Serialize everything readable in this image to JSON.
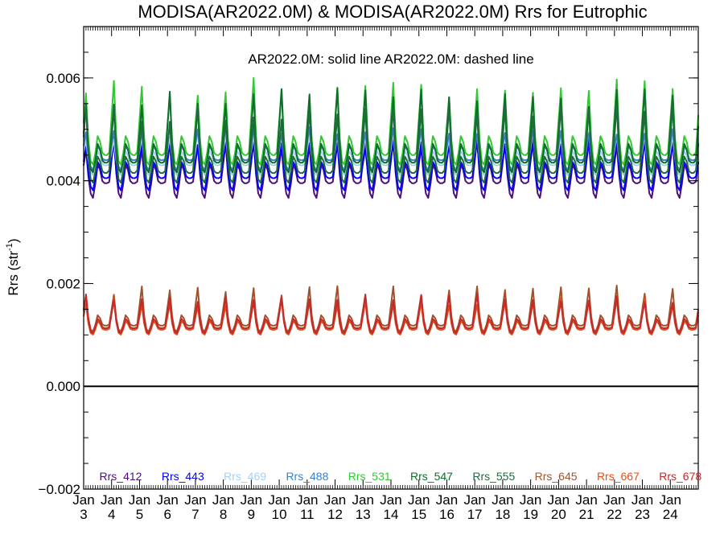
{
  "chart_data": {
    "type": "line",
    "title": "MODISA(AR2022.0M) & MODISA(AR2022.0M)  Rrs for Eutrophic",
    "subtitle": "AR2022.0M: solid line   AR2022.0M: dashed line",
    "ylabel": "Rrs (str",
    "ylabel_sup": "-1",
    "ylabel_close": ")",
    "xlabel": "",
    "ylim": [
      -0.002,
      0.007
    ],
    "xlim": [
      2003,
      2025
    ],
    "yticks": [
      "−0.002",
      "0.000",
      "0.002",
      "0.004",
      "0.006"
    ],
    "ytick_values": [
      -0.002,
      0.0,
      0.002,
      0.004,
      0.006
    ],
    "xticks": [
      {
        "month": "Jan",
        "year": "3",
        "x": 2003
      },
      {
        "month": "Jan",
        "year": "4",
        "x": 2004
      },
      {
        "month": "Jan",
        "year": "5",
        "x": 2005
      },
      {
        "month": "Jan",
        "year": "6",
        "x": 2006
      },
      {
        "month": "Jan",
        "year": "7",
        "x": 2007
      },
      {
        "month": "Jan",
        "year": "8",
        "x": 2008
      },
      {
        "month": "Jan",
        "year": "9",
        "x": 2009
      },
      {
        "month": "Jan",
        "year": "10",
        "x": 2010
      },
      {
        "month": "Jan",
        "year": "11",
        "x": 2011
      },
      {
        "month": "Jan",
        "year": "12",
        "x": 2012
      },
      {
        "month": "Jan",
        "year": "13",
        "x": 2013
      },
      {
        "month": "Jan",
        "year": "14",
        "x": 2014
      },
      {
        "month": "Jan",
        "year": "15",
        "x": 2015
      },
      {
        "month": "Jan",
        "year": "16",
        "x": 2016
      },
      {
        "month": "Jan",
        "year": "17",
        "x": 2017
      },
      {
        "month": "Jan",
        "year": "18",
        "x": 2018
      },
      {
        "month": "Jan",
        "year": "19",
        "x": 2019
      },
      {
        "month": "Jan",
        "year": "20",
        "x": 2020
      },
      {
        "month": "Jan",
        "year": "21",
        "x": 2021
      },
      {
        "month": "Jan",
        "year": "22",
        "x": 2022
      },
      {
        "month": "Jan",
        "year": "23",
        "x": 2023
      },
      {
        "month": "Jan",
        "year": "24",
        "x": 2024
      }
    ],
    "reference_line": {
      "y": 0.0,
      "color": "#000000"
    },
    "grid": false,
    "legend_position": "bottom",
    "series": [
      {
        "name": "Rrs_412",
        "color": "#4b0f7e",
        "baseline": 0.00395,
        "amplitude": 0.0008,
        "secondary": 0.0004,
        "trough_dip": 0.0003,
        "phase": 0.05,
        "lag": 0.02
      },
      {
        "name": "Rrs_443",
        "color": "#0000ff",
        "baseline": 0.00405,
        "amplitude": 0.0007,
        "secondary": 0.00035,
        "trough_dip": 0.00025,
        "phase": 0.05,
        "lag": 0.02
      },
      {
        "name": "Rrs_469",
        "color": "#a9cfee",
        "baseline": 0.0043,
        "amplitude": 0.0006,
        "secondary": 0.0003,
        "trough_dip": 0.0002,
        "phase": 0.05,
        "lag": 0.02
      },
      {
        "name": "Rrs_488",
        "color": "#3c7fcc",
        "baseline": 0.0044,
        "amplitude": 0.0006,
        "secondary": 0.0003,
        "trough_dip": 0.0002,
        "phase": 0.05,
        "lag": 0.02
      },
      {
        "name": "Rrs_531",
        "color": "#33c833",
        "baseline": 0.0045,
        "amplitude": 0.00135,
        "secondary": 0.0004,
        "trough_dip": 0.0002,
        "phase": 0.05,
        "lag": 0.02
      },
      {
        "name": "Rrs_547",
        "color": "#0d6e2a",
        "baseline": 0.00435,
        "amplitude": 0.0013,
        "secondary": 0.0004,
        "trough_dip": 0.0002,
        "phase": 0.05,
        "lag": 0.02
      },
      {
        "name": "Rrs_555",
        "color": "#1f6b3c",
        "baseline": 0.00415,
        "amplitude": 0.0012,
        "secondary": 0.00035,
        "trough_dip": 0.0002,
        "phase": 0.05,
        "lag": 0.02
      },
      {
        "name": "Rrs_645",
        "color": "#a0522d",
        "baseline": 0.00118,
        "amplitude": 0.0007,
        "secondary": 0.00022,
        "trough_dip": 0.00012,
        "phase": 0.05,
        "lag": 0.02
      },
      {
        "name": "Rrs_667",
        "color": "#e0501a",
        "baseline": 0.0011,
        "amplitude": 0.00055,
        "secondary": 0.00018,
        "trough_dip": 0.0001,
        "phase": 0.05,
        "lag": 0.02
      },
      {
        "name": "Rrs_678",
        "color": "#c8282a",
        "baseline": 0.00113,
        "amplitude": 0.0006,
        "secondary": 0.0002,
        "trough_dip": 0.0001,
        "phase": 0.05,
        "lag": 0.02
      }
    ]
  }
}
